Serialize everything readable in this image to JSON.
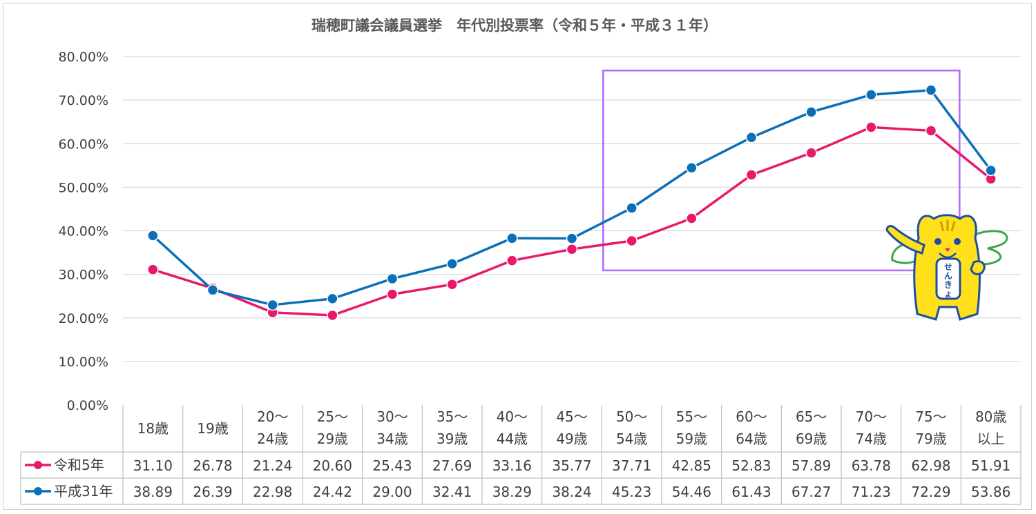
{
  "chart_data": {
    "type": "line",
    "title": "瑞穂町議会議員選挙　年代別投票率（令和５年・平成３１年）",
    "categories": [
      [
        "18歳"
      ],
      [
        "19歳"
      ],
      [
        "20～",
        "24歳"
      ],
      [
        "25～",
        "29歳"
      ],
      [
        "30～",
        "34歳"
      ],
      [
        "35～",
        "39歳"
      ],
      [
        "40～",
        "44歳"
      ],
      [
        "45～",
        "49歳"
      ],
      [
        "50～",
        "54歳"
      ],
      [
        "55～",
        "59歳"
      ],
      [
        "60～",
        "64歳"
      ],
      [
        "65～",
        "69歳"
      ],
      [
        "70～",
        "74歳"
      ],
      [
        "75～",
        "79歳"
      ],
      [
        "80歳",
        "以上"
      ]
    ],
    "yticks": [
      "0.00%",
      "10.00%",
      "20.00%",
      "30.00%",
      "40.00%",
      "50.00%",
      "60.00%",
      "70.00%",
      "80.00%"
    ],
    "ylim": [
      0,
      80
    ],
    "grid": true,
    "legend": "data-table",
    "highlight_range": {
      "from_category_index": 8,
      "to_category_index": 13,
      "color": "#b266ff"
    },
    "series": [
      {
        "name": "令和5年",
        "color": "#e8196a",
        "values": [
          31.1,
          26.78,
          21.24,
          20.6,
          25.43,
          27.69,
          33.16,
          35.77,
          37.71,
          42.85,
          52.83,
          57.89,
          63.78,
          62.98,
          51.91
        ],
        "labels": [
          "31.10",
          "26.78",
          "21.24",
          "20.60",
          "25.43",
          "27.69",
          "33.16",
          "35.77",
          "37.71",
          "42.85",
          "52.83",
          "57.89",
          "63.78",
          "62.98",
          "51.91"
        ]
      },
      {
        "name": "平成31年",
        "color": "#0b6fb8",
        "values": [
          38.89,
          26.39,
          22.98,
          24.42,
          29.0,
          32.41,
          38.29,
          38.24,
          45.23,
          54.46,
          61.43,
          67.27,
          71.23,
          72.29,
          53.86
        ],
        "labels": [
          "38.89",
          "26.39",
          "22.98",
          "24.42",
          "29.00",
          "32.41",
          "38.29",
          "38.24",
          "45.23",
          "54.46",
          "61.43",
          "67.27",
          "71.23",
          "72.29",
          "53.86"
        ]
      }
    ]
  },
  "mascot": {
    "sign_text": [
      "せ",
      "ん",
      "き",
      "ょ"
    ]
  }
}
